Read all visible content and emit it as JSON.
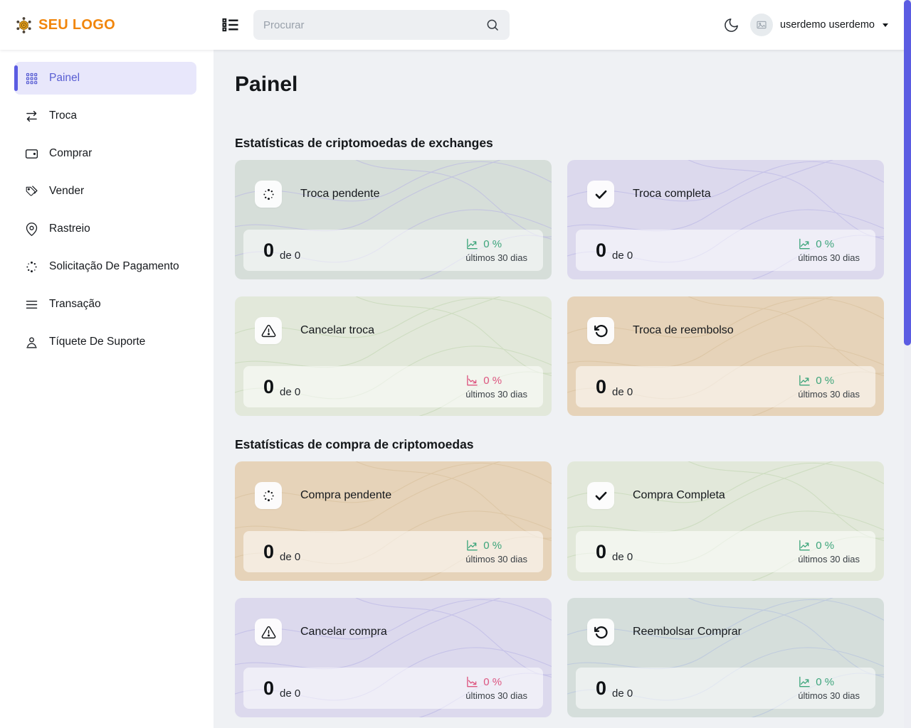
{
  "topbar": {
    "logo_text": "SEU LOGO",
    "search_placeholder": "Procurar",
    "user_name": "userdemo userdemo"
  },
  "sidebar": {
    "items": [
      {
        "label": "Painel",
        "icon": "grid-icon",
        "active": true
      },
      {
        "label": "Troca",
        "icon": "exchange-arrows-icon",
        "active": false
      },
      {
        "label": "Comprar",
        "icon": "wallet-icon",
        "active": false
      },
      {
        "label": "Vender",
        "icon": "tag-icon",
        "active": false
      },
      {
        "label": "Rastreio",
        "icon": "map-pin-icon",
        "active": false
      },
      {
        "label": "Solicitação De Pagamento",
        "icon": "spinner-dots-icon",
        "active": false
      },
      {
        "label": "Transação",
        "icon": "list-lines-icon",
        "active": false
      },
      {
        "label": "Tíquete De Suporte",
        "icon": "support-person-icon",
        "active": false
      }
    ]
  },
  "main": {
    "page_title": "Painel",
    "sections": [
      {
        "title": "Estatísticas de criptomoedas de exchanges",
        "cards": [
          {
            "label": "Troca pendente",
            "icon": "spinner-dots-icon",
            "value": "0",
            "value_suffix": "de 0",
            "percent": "0 %",
            "period": "últimos 30 dias",
            "trend": "up",
            "bg": "#d6ded9",
            "wave": "#b4b0e4"
          },
          {
            "label": "Troca completa",
            "icon": "check-icon",
            "value": "0",
            "value_suffix": "de 0",
            "percent": "0 %",
            "period": "últimos 30 dias",
            "trend": "up",
            "bg": "#dcd9ed",
            "wave": "#b4b0e4"
          },
          {
            "label": "Cancelar troca",
            "icon": "warning-triangle-icon",
            "value": "0",
            "value_suffix": "de 0",
            "percent": "0 %",
            "period": "últimos 30 dias",
            "trend": "down",
            "bg": "#e2e8da",
            "wave": "#bed3ae"
          },
          {
            "label": "Troca de reembolso",
            "icon": "refund-rotate-icon",
            "value": "0",
            "value_suffix": "de 0",
            "percent": "0 %",
            "period": "últimos 30 dias",
            "trend": "up",
            "bg": "#e6d3b9",
            "wave": "#d6bd98"
          }
        ]
      },
      {
        "title": "Estatísticas de compra de criptomoedas",
        "cards": [
          {
            "label": "Compra pendente",
            "icon": "spinner-dots-icon",
            "value": "0",
            "value_suffix": "de 0",
            "percent": "0 %",
            "period": "últimos 30 dias",
            "trend": "up",
            "bg": "#e6d3b9",
            "wave": "#d6bd98"
          },
          {
            "label": "Compra Completa",
            "icon": "check-icon",
            "value": "0",
            "value_suffix": "de 0",
            "percent": "0 %",
            "period": "últimos 30 dias",
            "trend": "up",
            "bg": "#e2e8da",
            "wave": "#bed3ae"
          },
          {
            "label": "Cancelar compra",
            "icon": "warning-triangle-icon",
            "value": "0",
            "value_suffix": "de 0",
            "percent": "0 %",
            "period": "últimos 30 dias",
            "trend": "down",
            "bg": "#dcd9ed",
            "wave": "#b4b0e4"
          },
          {
            "label": "Reembolsar Comprar",
            "icon": "refund-rotate-icon",
            "value": "0",
            "value_suffix": "de 0",
            "percent": "0 %",
            "period": "últimos 30 dias",
            "trend": "up",
            "bg": "#d5dedb",
            "wave": "#aebcdf"
          }
        ]
      }
    ]
  },
  "colors": {
    "accent_indigo": "#5b5ce2",
    "brand_orange": "#f1860c",
    "trend_up_green": "#3da57b",
    "trend_down_pink": "#dd5680"
  }
}
